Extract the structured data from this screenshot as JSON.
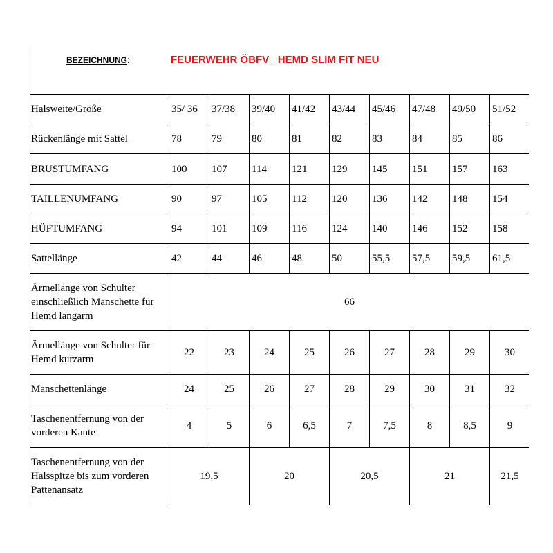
{
  "header": {
    "label": "BEZEICHNUNG",
    "colon": ":",
    "title": "FEUERWEHR ÖBFV_ HEMD SLIM FIT NEU"
  },
  "table": {
    "sizes_label": "Halsweite/Größe",
    "sizes": [
      "35/ 36",
      "37/38",
      "39/40",
      "41/42",
      "43/44",
      "45/46",
      "47/48",
      "49/50",
      "51/52"
    ],
    "rows": [
      {
        "label": "Rückenlänge mit Sattel",
        "values": [
          "78",
          "79",
          "80",
          "81",
          "82",
          "83",
          "84",
          "85",
          "86"
        ]
      },
      {
        "label": "BRUSTUMFANG",
        "values": [
          "100",
          "107",
          "114",
          "121",
          "129",
          "145",
          "151",
          "157",
          "163"
        ]
      },
      {
        "label": "TAILLENUMFANG",
        "values": [
          "90",
          "97",
          "105",
          "112",
          "120",
          "136",
          "142",
          "148",
          "154"
        ]
      },
      {
        "label": "HÜFTUMFANG",
        "values": [
          "94",
          "101",
          "109",
          "116",
          "124",
          "140",
          "146",
          "152",
          "158"
        ]
      },
      {
        "label": "Sattellänge",
        "values": [
          "42",
          "44",
          "46",
          "48",
          "50",
          "55,5",
          "57,5",
          "59,5",
          "61,5"
        ]
      }
    ],
    "sleeve_long": {
      "label": "Ärmellänge von Schulter einschließlich Manschette für Hemd langarm",
      "value": "66"
    },
    "sleeve_short": {
      "label": "Ärmellänge von Schulter für Hemd kurzarm",
      "values": [
        "22",
        "23",
        "24",
        "25",
        "26",
        "27",
        "28",
        "29",
        "30"
      ]
    },
    "cuff": {
      "label": "Manschettenlänge",
      "values": [
        "24",
        "25",
        "26",
        "27",
        "28",
        "29",
        "30",
        "31",
        "32"
      ]
    },
    "pocket_edge": {
      "label": "Taschenentfernung von der vorderen Kante",
      "values": [
        "4",
        "5",
        "6",
        "6,5",
        "7",
        "7,5",
        "8",
        "8,5",
        "9"
      ]
    },
    "pocket_neck": {
      "label": "Taschenentfernung von der Halsspitze bis zum vorderen Pattenansatz",
      "values": [
        "19,5",
        "20",
        "20,5",
        "21",
        "21,5"
      ]
    }
  }
}
